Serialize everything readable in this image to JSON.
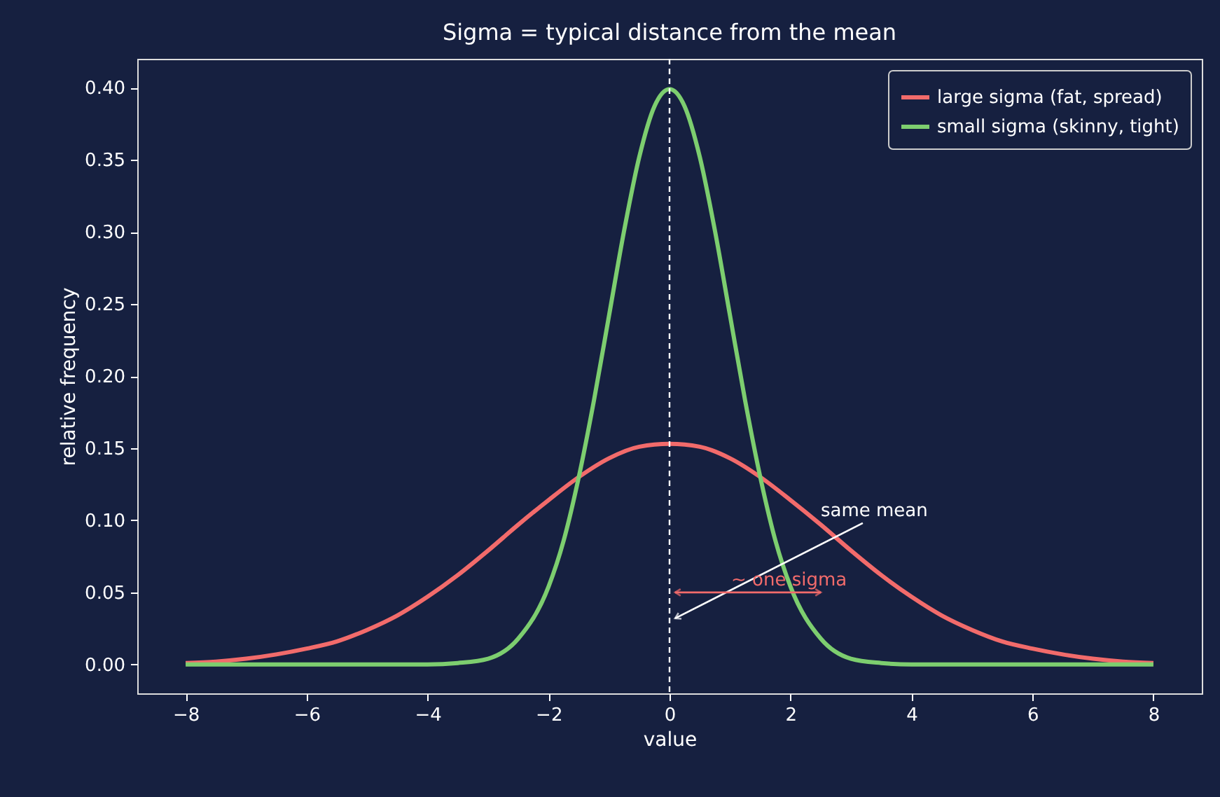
{
  "chart_data": {
    "type": "line",
    "title": "Sigma = typical distance from the mean",
    "xlabel": "value",
    "ylabel": "relative frequency",
    "xlim": [
      -8.8,
      8.8
    ],
    "ylim": [
      -0.02,
      0.42
    ],
    "xticks": [
      {
        "value": -8,
        "label": "−8"
      },
      {
        "value": -6,
        "label": "−6"
      },
      {
        "value": -4,
        "label": "−4"
      },
      {
        "value": -2,
        "label": "−2"
      },
      0,
      2,
      4,
      6,
      8
    ],
    "yticks": [
      {
        "value": 0,
        "label": "0.00"
      },
      {
        "value": 0.05,
        "label": "0.05"
      },
      {
        "value": 0.1,
        "label": "0.10"
      },
      {
        "value": 0.15,
        "label": "0.15"
      },
      {
        "value": 0.2,
        "label": "0.20"
      },
      {
        "value": 0.25,
        "label": "0.25"
      },
      {
        "value": 0.3,
        "label": "0.30"
      },
      {
        "value": 0.35,
        "label": "0.35"
      },
      {
        "value": 0.4,
        "label": "0.40"
      }
    ],
    "grid": false,
    "legend": "top right",
    "marker": "none",
    "line_style": "solid",
    "series": [
      {
        "name": "large sigma (fat, spread)",
        "color": "#f26b6b",
        "x": [
          -8,
          -7.5,
          -7,
          -6.5,
          -6,
          -5.5,
          -5,
          -4.5,
          -4,
          -3.5,
          -3,
          -2.5,
          -2,
          -1.5,
          -1,
          -0.5,
          0,
          0.5,
          1,
          1.5,
          2,
          2.5,
          3,
          3.5,
          4,
          4.5,
          5,
          5.5,
          6,
          6.5,
          7,
          7.5,
          8
        ],
        "values": [
          0.001,
          0.002,
          0.004,
          0.007,
          0.011,
          0.016,
          0.024,
          0.034,
          0.047,
          0.062,
          0.079,
          0.097,
          0.114,
          0.13,
          0.143,
          0.151,
          0.153,
          0.151,
          0.143,
          0.13,
          0.114,
          0.097,
          0.079,
          0.062,
          0.047,
          0.034,
          0.024,
          0.016,
          0.011,
          0.007,
          0.004,
          0.002,
          0.001
        ]
      },
      {
        "name": "small sigma (skinny, tight)",
        "color": "#7dce6f",
        "x": [
          -8,
          -5,
          -4,
          -3.5,
          -3,
          -2.5,
          -2,
          -1.75,
          -1.5,
          -1.25,
          -1,
          -0.75,
          -0.5,
          -0.25,
          0,
          0.25,
          0.5,
          0.75,
          1,
          1.25,
          1.5,
          1.75,
          2,
          2.5,
          3,
          3.5,
          4,
          5,
          8
        ],
        "values": [
          0,
          0,
          0,
          0.001,
          0.004,
          0.018,
          0.054,
          0.086,
          0.13,
          0.183,
          0.242,
          0.301,
          0.352,
          0.387,
          0.399,
          0.387,
          0.352,
          0.301,
          0.242,
          0.183,
          0.13,
          0.086,
          0.054,
          0.018,
          0.004,
          0.001,
          0,
          0,
          0
        ]
      }
    ],
    "ref_lines": [
      {
        "axis": "x",
        "value": 0,
        "color": "#ffffff",
        "line_style": "dashed"
      }
    ],
    "annotations": [
      {
        "text": "same mean",
        "x": 2.5,
        "y": 0.1
      },
      {
        "text": "~ one sigma",
        "x": 0,
        "y": 0.05
      }
    ]
  }
}
